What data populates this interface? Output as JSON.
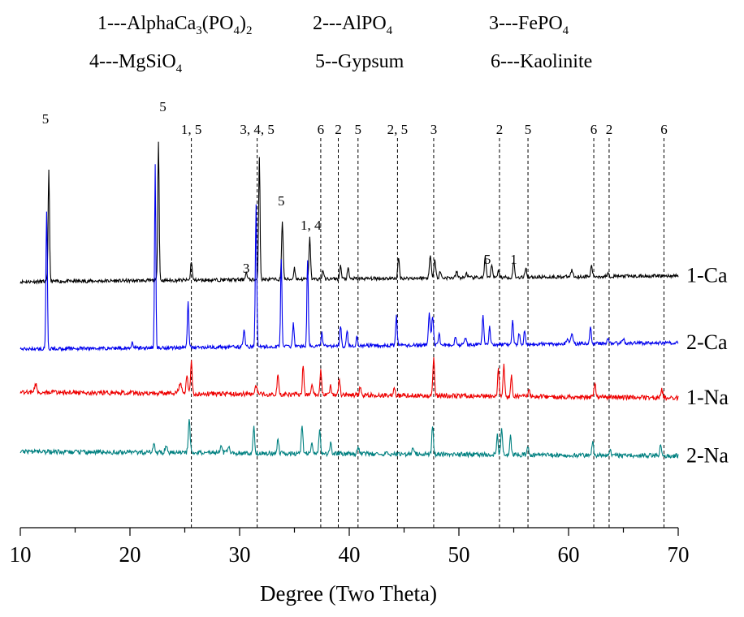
{
  "chart_data": {
    "type": "line",
    "xlabel": "Degree (Two Theta)",
    "ylabel": "",
    "xlim": [
      10,
      70
    ],
    "x_ticks": [
      "10",
      "20",
      "30",
      "40",
      "50",
      "60",
      "70"
    ],
    "legend": [
      {
        "num": "1---",
        "main": "AlphaCa",
        "s1": "3",
        "mid": "(PO",
        "s2": "4",
        "tail": ")",
        "s3": "2"
      },
      {
        "num": "2---",
        "main": "AlPO",
        "s1": "4"
      },
      {
        "num": "3---",
        "main": "FePO",
        "s1": "4"
      },
      {
        "num": "4---",
        "main": "MgSiO",
        "s1": "4"
      },
      {
        "num": "5--",
        "main": "Gypsum"
      },
      {
        "num": "6---",
        "main": "Kaolinite"
      }
    ],
    "reference_lines": [
      {
        "x": 25.6,
        "label": "1, 5"
      },
      {
        "x": 31.6,
        "label": "3, 4, 5"
      },
      {
        "x": 37.4,
        "label": "6"
      },
      {
        "x": 39.0,
        "label": "2"
      },
      {
        "x": 40.8,
        "label": "5"
      },
      {
        "x": 44.4,
        "label": "2, 5"
      },
      {
        "x": 47.7,
        "label": "3"
      },
      {
        "x": 53.7,
        "label": "2"
      },
      {
        "x": 56.3,
        "label": "5"
      },
      {
        "x": 62.3,
        "label": "6"
      },
      {
        "x": 63.7,
        "label": "2"
      },
      {
        "x": 68.7,
        "label": "6"
      }
    ],
    "peak_annotations": [
      {
        "x": 12.3,
        "label": "5"
      },
      {
        "x": 23.0,
        "label": "5"
      },
      {
        "x": 30.6,
        "label": "3"
      },
      {
        "x": 33.8,
        "label": "5"
      },
      {
        "x": 36.5,
        "label": "1, 4"
      },
      {
        "x": 52.6,
        "label": "5"
      },
      {
        "x": 55.0,
        "label": "1"
      }
    ],
    "series": [
      {
        "name": "1-Ca",
        "color": "#000000",
        "baseline_start": 0.0,
        "baseline_end": 0.26,
        "noise": 0.035,
        "peaks": [
          [
            12.6,
            4.9,
            0.09
          ],
          [
            22.6,
            6.1,
            0.09
          ],
          [
            25.6,
            0.85,
            0.1
          ],
          [
            30.6,
            0.32,
            0.12
          ],
          [
            31.8,
            5.4,
            0.09
          ],
          [
            33.9,
            2.6,
            0.1
          ],
          [
            35.0,
            0.5,
            0.1
          ],
          [
            36.4,
            1.8,
            0.1
          ],
          [
            37.6,
            0.4,
            0.1
          ],
          [
            39.2,
            0.6,
            0.1
          ],
          [
            39.9,
            0.45,
            0.1
          ],
          [
            44.5,
            0.9,
            0.1
          ],
          [
            47.4,
            0.95,
            0.12
          ],
          [
            47.8,
            0.8,
            0.12
          ],
          [
            48.3,
            0.3,
            0.1
          ],
          [
            49.8,
            0.25,
            0.12
          ],
          [
            50.7,
            0.2,
            0.12
          ],
          [
            52.4,
            0.9,
            0.1
          ],
          [
            53.0,
            0.6,
            0.1
          ],
          [
            53.6,
            0.35,
            0.1
          ],
          [
            55.0,
            0.7,
            0.1
          ],
          [
            56.1,
            0.45,
            0.1
          ],
          [
            60.3,
            0.3,
            0.12
          ],
          [
            62.1,
            0.5,
            0.1
          ],
          [
            63.6,
            0.2,
            0.1
          ]
        ]
      },
      {
        "name": "2-Ca",
        "color": "#0000ee",
        "baseline_start": 0.0,
        "baseline_end": 0.28,
        "noise": 0.035,
        "peaks": [
          [
            12.4,
            6.0,
            0.09
          ],
          [
            20.2,
            0.25,
            0.12
          ],
          [
            22.3,
            8.1,
            0.08
          ],
          [
            25.3,
            2.1,
            0.09
          ],
          [
            30.4,
            0.7,
            0.12
          ],
          [
            31.5,
            6.3,
            0.09
          ],
          [
            33.8,
            3.8,
            0.09
          ],
          [
            34.9,
            1.0,
            0.1
          ],
          [
            36.2,
            3.8,
            0.09
          ],
          [
            37.5,
            0.6,
            0.1
          ],
          [
            39.2,
            0.9,
            0.1
          ],
          [
            39.8,
            0.7,
            0.1
          ],
          [
            40.7,
            0.4,
            0.1
          ],
          [
            44.3,
            1.3,
            0.1
          ],
          [
            47.3,
            1.4,
            0.12
          ],
          [
            47.6,
            1.2,
            0.12
          ],
          [
            48.2,
            0.5,
            0.1
          ],
          [
            49.7,
            0.35,
            0.12
          ],
          [
            50.6,
            0.3,
            0.12
          ],
          [
            52.2,
            1.3,
            0.1
          ],
          [
            52.8,
            0.8,
            0.1
          ],
          [
            54.9,
            1.0,
            0.1
          ],
          [
            55.5,
            0.5,
            0.1
          ],
          [
            56.0,
            0.65,
            0.1
          ],
          [
            59.9,
            0.25,
            0.12
          ],
          [
            60.3,
            0.5,
            0.12
          ],
          [
            62.0,
            0.7,
            0.1
          ],
          [
            63.6,
            0.25,
            0.1
          ],
          [
            65.0,
            0.2,
            0.12
          ]
        ]
      },
      {
        "name": "1-Na",
        "color": "#ee0000",
        "baseline_start": 0.25,
        "baseline_end": 0.0,
        "noise": 0.045,
        "peaks": [
          [
            11.4,
            0.35,
            0.15
          ],
          [
            24.6,
            0.45,
            0.2
          ],
          [
            25.2,
            0.8,
            0.12
          ],
          [
            25.6,
            1.4,
            0.1
          ],
          [
            31.5,
            0.35,
            0.12
          ],
          [
            33.5,
            0.95,
            0.1
          ],
          [
            35.8,
            1.3,
            0.1
          ],
          [
            36.6,
            0.4,
            0.1
          ],
          [
            37.4,
            1.1,
            0.1
          ],
          [
            38.3,
            0.45,
            0.1
          ],
          [
            39.1,
            0.7,
            0.1
          ],
          [
            41.0,
            0.4,
            0.1
          ],
          [
            44.1,
            0.3,
            0.12
          ],
          [
            47.7,
            1.7,
            0.1
          ],
          [
            53.6,
            1.2,
            0.1
          ],
          [
            54.1,
            1.4,
            0.1
          ],
          [
            54.8,
            0.9,
            0.1
          ],
          [
            56.4,
            0.3,
            0.1
          ],
          [
            62.4,
            0.6,
            0.1
          ],
          [
            68.5,
            0.35,
            0.12
          ]
        ]
      },
      {
        "name": "2-Na",
        "color": "#008080",
        "baseline_start": 0.2,
        "baseline_end": 0.02,
        "noise": 0.045,
        "peaks": [
          [
            22.2,
            0.35,
            0.12
          ],
          [
            23.3,
            0.25,
            0.15
          ],
          [
            25.4,
            1.4,
            0.12
          ],
          [
            28.3,
            0.25,
            0.15
          ],
          [
            29.0,
            0.35,
            0.15
          ],
          [
            31.3,
            1.2,
            0.1
          ],
          [
            33.5,
            0.7,
            0.1
          ],
          [
            35.7,
            1.3,
            0.1
          ],
          [
            36.6,
            0.4,
            0.1
          ],
          [
            37.3,
            1.1,
            0.1
          ],
          [
            38.3,
            0.45,
            0.1
          ],
          [
            40.8,
            0.35,
            0.1
          ],
          [
            45.8,
            0.25,
            0.12
          ],
          [
            47.6,
            1.3,
            0.1
          ],
          [
            53.5,
            0.9,
            0.1
          ],
          [
            53.9,
            1.2,
            0.1
          ],
          [
            54.7,
            0.8,
            0.1
          ],
          [
            56.3,
            0.35,
            0.1
          ],
          [
            62.2,
            0.6,
            0.1
          ],
          [
            63.8,
            0.2,
            0.1
          ],
          [
            68.4,
            0.45,
            0.12
          ]
        ]
      }
    ]
  }
}
